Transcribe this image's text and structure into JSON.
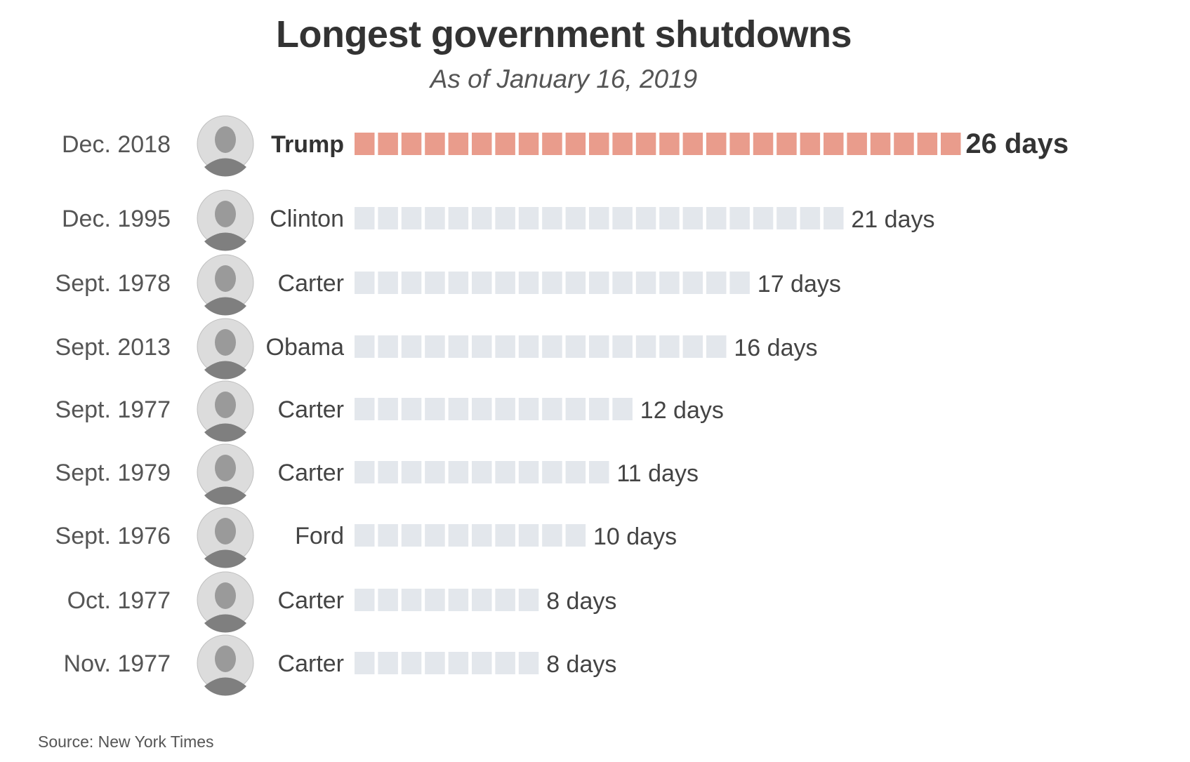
{
  "chart_data": {
    "type": "bar",
    "title": "Longest government shutdowns",
    "subtitle": "As of January 16, 2019",
    "unit_label": "days",
    "rows": [
      {
        "date": "Dec. 2018",
        "president": "Trump",
        "days": 26,
        "label": "26 days",
        "highlight": true
      },
      {
        "date": "Dec. 1995",
        "president": "Clinton",
        "days": 21,
        "label": "21 days",
        "highlight": false
      },
      {
        "date": "Sept. 1978",
        "president": "Carter",
        "days": 17,
        "label": "17 days",
        "highlight": false
      },
      {
        "date": "Sept. 2013",
        "president": "Obama",
        "days": 16,
        "label": "16 days",
        "highlight": false
      },
      {
        "date": "Sept. 1977",
        "president": "Carter",
        "days": 12,
        "label": "12 days",
        "highlight": false
      },
      {
        "date": "Sept. 1979",
        "president": "Carter",
        "days": 11,
        "label": "11 days",
        "highlight": false
      },
      {
        "date": "Sept. 1976",
        "president": "Ford",
        "days": 10,
        "label": "10 days",
        "highlight": false
      },
      {
        "date": "Oct. 1977",
        "president": "Carter",
        "days": 8,
        "label": "8 days",
        "highlight": false
      },
      {
        "date": "Nov. 1977",
        "president": "Carter",
        "days": 8,
        "label": "8 days",
        "highlight": false
      }
    ],
    "source": "Source: New York Times"
  },
  "colors": {
    "highlight_block": "#e99c8c",
    "block": "#e3e7ec",
    "date_text": "#555555",
    "name_text": "#444444",
    "highlight_text": "#333333",
    "label_text": "#444444",
    "portrait_background": "#dcdcdc",
    "portrait_feature": "#9a9a9a"
  }
}
